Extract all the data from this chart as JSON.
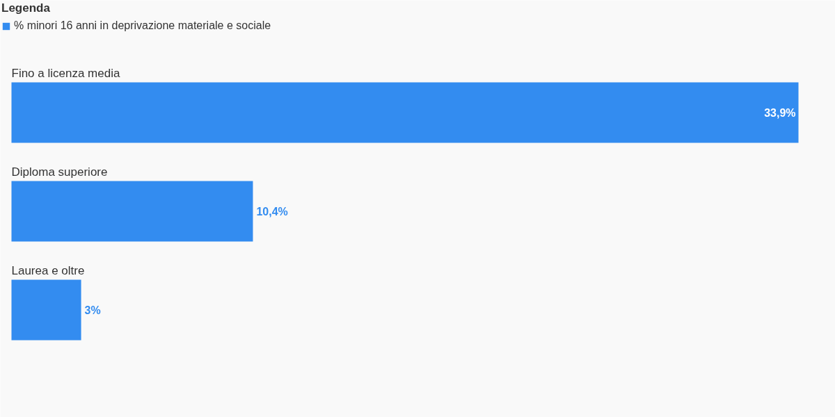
{
  "chart_data": {
    "type": "bar",
    "orientation": "horizontal",
    "legend_title": "Legenda",
    "legend": "top left",
    "tick_labels": "y",
    "categories": [
      "Fino a licenza media",
      "Diploma superiore",
      "Laurea e oltre"
    ],
    "series": [
      {
        "name": "% minori 16 anni in deprivazione materiale e sociale",
        "color": "#338cf0",
        "values": [
          33.9,
          10.4,
          3
        ],
        "value_labels": [
          "33,9%",
          "10,4%",
          "3%"
        ]
      }
    ]
  }
}
